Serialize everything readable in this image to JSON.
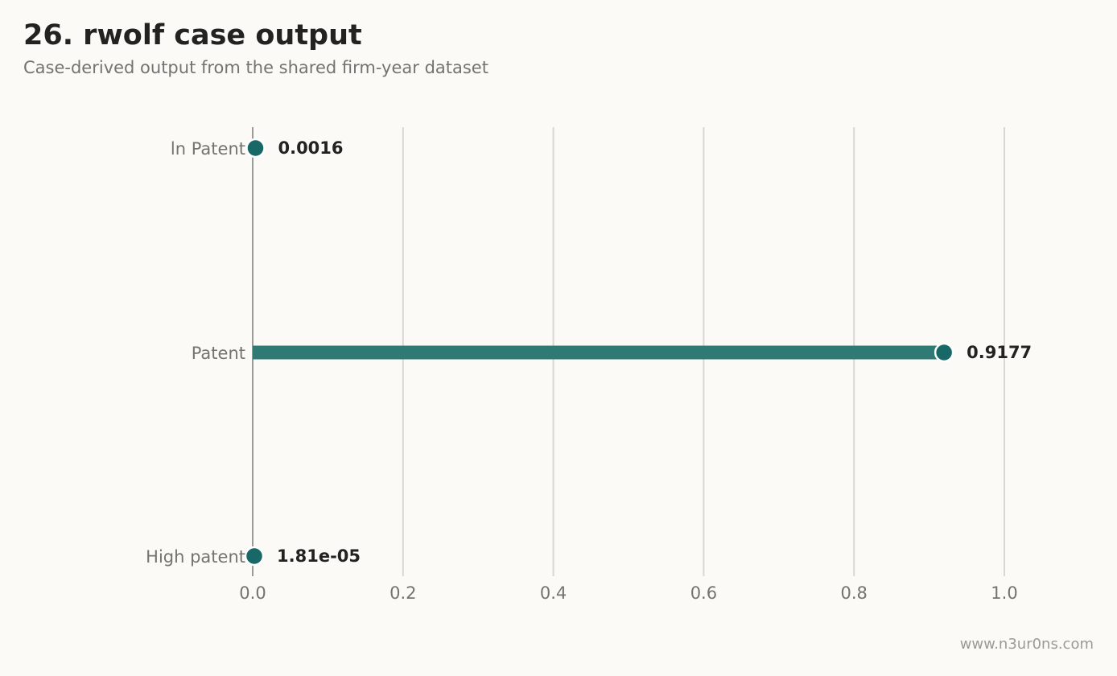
{
  "header": {
    "title": "26. rwolf case output",
    "subtitle": "Case-derived output from the shared firm-year dataset"
  },
  "footer": {
    "watermark": "www.n3ur0ns.com"
  },
  "chart_data": {
    "type": "bar",
    "orientation": "horizontal",
    "style": "lollipop",
    "categories": [
      "ln Patent",
      "Patent",
      "High patent"
    ],
    "values": [
      0.0016,
      0.9177,
      1.81e-05
    ],
    "value_labels": [
      "0.0016",
      "0.9177",
      "1.81e-05"
    ],
    "xlim": [
      0,
      1.0
    ],
    "xticks": [
      0.0,
      0.2,
      0.4,
      0.6,
      0.8,
      1.0
    ],
    "xtick_labels": [
      "0.0",
      "0.2",
      "0.4",
      "0.6",
      "0.8",
      "1.0"
    ],
    "grid": "vertical",
    "colors": {
      "bar": "#2f7a74",
      "marker": "#176866",
      "grid": "#d9d8d3",
      "axis": "#9a9a96"
    }
  }
}
